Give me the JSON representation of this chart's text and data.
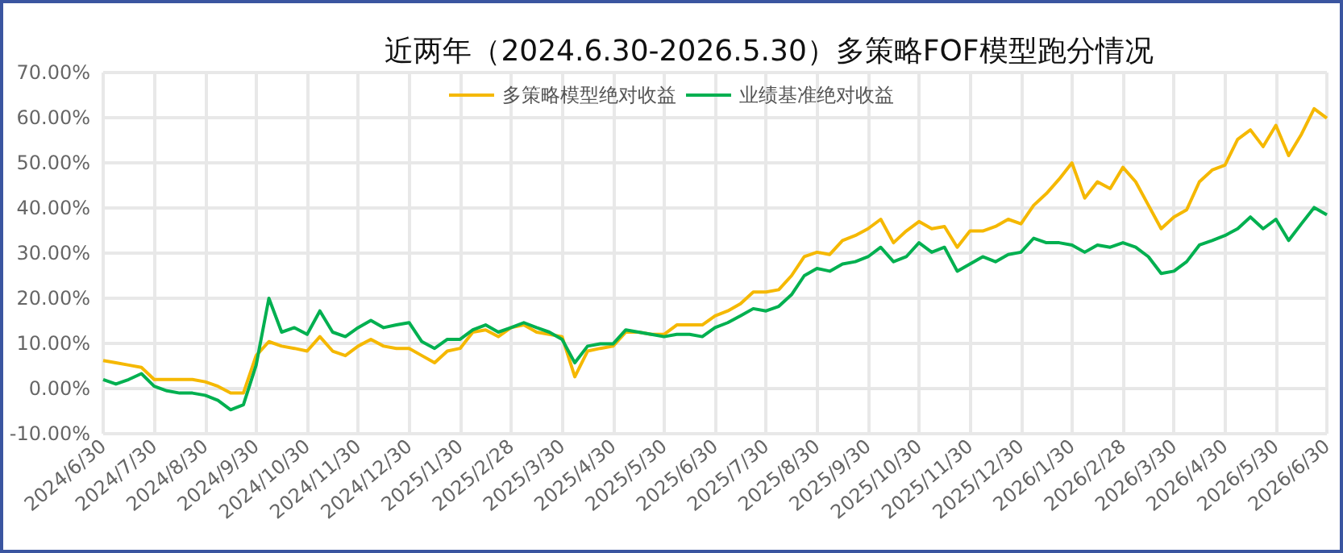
{
  "chart_data": {
    "type": "line",
    "title": "近两年（2024.6.30-2026.5.30）多策略FOF模型跑分情况",
    "categories": [
      "2024/6/30",
      null,
      null,
      null,
      "2024/7/30",
      null,
      null,
      null,
      "2024/8/30",
      null,
      null,
      null,
      "2024/9/30",
      null,
      null,
      null,
      "2024/10/30",
      null,
      null,
      null,
      "2024/11/30",
      null,
      null,
      null,
      "2024/12/30",
      null,
      null,
      null,
      "2025/1/30",
      null,
      null,
      null,
      "2025/2/28",
      null,
      null,
      null,
      "2025/3/30",
      null,
      null,
      null,
      "2025/4/30",
      null,
      null,
      null,
      "2025/5/30",
      null,
      null,
      null,
      "2025/6/30",
      null,
      null,
      null,
      "2025/7/30",
      null,
      null,
      null,
      "2025/8/30",
      null,
      null,
      null,
      "2025/9/30",
      null,
      null,
      null,
      "2025/10/30",
      null,
      null,
      null,
      "2025/11/30",
      null,
      null,
      null,
      "2025/12/30",
      null,
      null,
      null,
      "2026/1/30",
      null,
      null,
      null,
      "2026/2/28",
      null,
      null,
      null,
      "2026/3/30",
      null,
      null,
      null,
      "2026/4/30",
      null,
      null,
      null,
      "2026/5/30",
      null,
      null,
      null,
      "2026/6/30"
    ],
    "series": [
      {
        "name": "多策略模型绝对收益",
        "color": "#f5b800",
        "values": [
          6.2,
          5.7,
          5.2,
          4.7,
          2,
          2,
          2,
          2,
          1.5,
          0.5,
          -1,
          -1,
          7.3,
          10.4,
          9.4,
          8.9,
          8.3,
          11.5,
          8.3,
          7.3,
          9.4,
          10.9,
          9.4,
          8.9,
          8.9,
          7.3,
          5.7,
          8.3,
          8.9,
          12.5,
          13,
          11.5,
          13.5,
          14.1,
          12.5,
          12,
          11.5,
          2.6,
          8.3,
          8.9,
          9.4,
          12.5,
          12.5,
          12,
          12,
          14.1,
          14.1,
          14.1,
          16.1,
          17.2,
          18.8,
          21.4,
          21.4,
          21.9,
          25,
          29.2,
          30.2,
          29.7,
          32.8,
          33.9,
          35.4,
          37.5,
          32.3,
          34.9,
          37,
          35.4,
          35.9,
          31.3,
          34.9,
          34.9,
          35.9,
          37.5,
          36.5,
          40.6,
          43.2,
          46.4,
          50,
          42.2,
          45.8,
          44.3,
          49,
          45.8,
          40.6,
          35.4,
          38,
          39.6,
          45.8,
          48.4,
          49.5,
          55.2,
          57.3,
          53.6,
          58.3,
          51.6,
          56.3,
          62,
          59.9
        ]
      },
      {
        "name": "业绩基准绝对收益",
        "color": "#00b050",
        "values": [
          2,
          1,
          2,
          3.3,
          0.5,
          -0.5,
          -1,
          -1,
          -1.5,
          -2.6,
          -4.7,
          -3.6,
          5.2,
          20,
          12.5,
          13.5,
          12,
          17.2,
          12.5,
          11.5,
          13.5,
          15.1,
          13.5,
          14.1,
          14.6,
          10.4,
          8.9,
          10.9,
          10.9,
          13,
          14.1,
          12.5,
          13.5,
          14.6,
          13.5,
          12.5,
          10.9,
          5.7,
          9.4,
          9.9,
          9.9,
          13,
          12.5,
          12,
          11.5,
          12,
          12,
          11.5,
          13.5,
          14.6,
          16.1,
          17.7,
          17.2,
          18.2,
          20.8,
          25,
          26.6,
          26,
          27.6,
          28.1,
          29.2,
          31.3,
          28.1,
          29.2,
          32.3,
          30.2,
          31.3,
          26,
          27.6,
          29.2,
          28.1,
          29.7,
          30.2,
          33.3,
          32.3,
          32.3,
          31.8,
          30.2,
          31.8,
          31.3,
          32.3,
          31.3,
          29.2,
          25.5,
          26,
          28.1,
          31.8,
          32.8,
          33.9,
          35.4,
          38,
          35.4,
          37.5,
          32.8,
          36.5,
          40.1,
          38.5
        ]
      }
    ],
    "ylim": [
      -10,
      70
    ],
    "yticks": [
      {
        "value": -10,
        "label": "-10.00%"
      },
      {
        "value": 0,
        "label": "0.00%"
      },
      {
        "value": 10,
        "label": "10.00%"
      },
      {
        "value": 20,
        "label": "20.00%"
      },
      {
        "value": 30,
        "label": "30.00%"
      },
      {
        "value": 40,
        "label": "40.00%"
      },
      {
        "value": 50,
        "label": "50.00%"
      },
      {
        "value": 60,
        "label": "60.00%"
      },
      {
        "value": 70,
        "label": "70.00%"
      }
    ],
    "grid": true,
    "legend": "top",
    "marker": "none",
    "line_style": "solid"
  }
}
